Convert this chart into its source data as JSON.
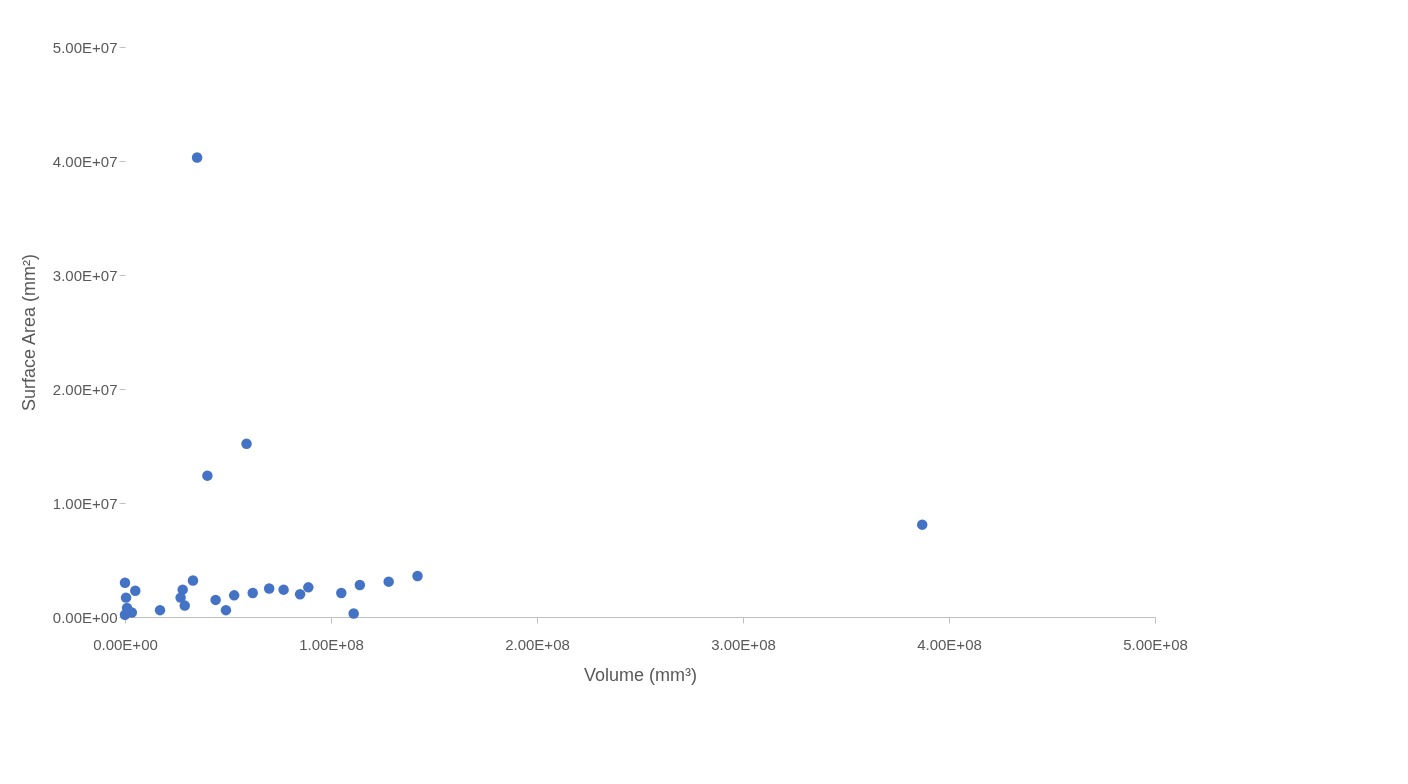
{
  "chart_data": {
    "type": "scatter",
    "xlabel": "Volume (mm³)",
    "ylabel": "Surface Area (mm²)",
    "x": [
      0,
      5000000,
      500000,
      1000000,
      3300000,
      0,
      17000000,
      28000000,
      33000000,
      29000000,
      27000000,
      44000000,
      49000000,
      53000000,
      62000000,
      70000000,
      77000000,
      89000000,
      85000000,
      105000000,
      111000000,
      114000000,
      128000000,
      142000000,
      35000000,
      40000000,
      59000000,
      387000000
    ],
    "series": [
      {
        "color": "#4472c4",
        "values": [
          3000000,
          2300000,
          1700000,
          800000,
          400000,
          200000,
          600000,
          2400000,
          3200000,
          1000000,
          1700000,
          1500000,
          600000,
          1900000,
          2100000,
          2500000,
          2400000,
          2600000,
          2000000,
          2100000,
          300000,
          2800000,
          3100000,
          3600000,
          40300000,
          12400000,
          15200000,
          8100000
        ]
      }
    ],
    "xlim": [
      0,
      500000000
    ],
    "ylim": [
      0,
      50000000
    ],
    "xticks": [
      {
        "value": 0,
        "label": "0.00E+00"
      },
      {
        "value": 100000000,
        "label": "1.00E+08"
      },
      {
        "value": 200000000,
        "label": "2.00E+08"
      },
      {
        "value": 300000000,
        "label": "3.00E+08"
      },
      {
        "value": 400000000,
        "label": "4.00E+08"
      },
      {
        "value": 500000000,
        "label": "5.00E+08"
      }
    ],
    "yticks": [
      {
        "value": 0,
        "label": "0.00E+00"
      },
      {
        "value": 10000000,
        "label": "1.00E+07"
      },
      {
        "value": 20000000,
        "label": "2.00E+07"
      },
      {
        "value": 30000000,
        "label": "3.00E+07"
      },
      {
        "value": 40000000,
        "label": "4.00E+07"
      },
      {
        "value": 50000000,
        "label": "5.00E+07"
      }
    ],
    "grid": false,
    "legend": false,
    "marker": "circle"
  }
}
